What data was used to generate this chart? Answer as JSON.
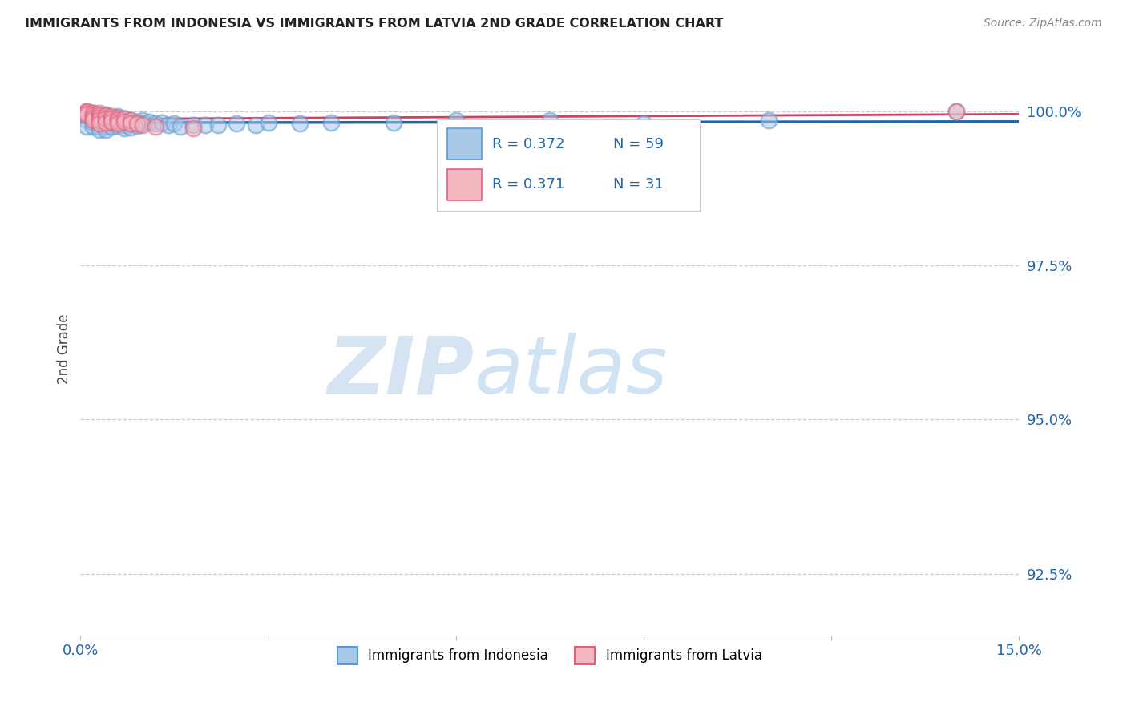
{
  "title": "IMMIGRANTS FROM INDONESIA VS IMMIGRANTS FROM LATVIA 2ND GRADE CORRELATION CHART",
  "source": "Source: ZipAtlas.com",
  "ylabel": "2nd Grade",
  "xmin": 0.0,
  "xmax": 0.15,
  "ymin": 0.915,
  "ymax": 1.008,
  "xticks": [
    0.0,
    0.03,
    0.06,
    0.09,
    0.12,
    0.15
  ],
  "xticklabels": [
    "0.0%",
    "",
    "",
    "",
    "",
    "15.0%"
  ],
  "yticks": [
    0.925,
    0.95,
    0.975,
    1.0
  ],
  "yticklabels": [
    "92.5%",
    "95.0%",
    "97.5%",
    "100.0%"
  ],
  "legend_label1": "Immigrants from Indonesia",
  "legend_label2": "Immigrants from Latvia",
  "color_indonesia": "#a8c8e8",
  "color_indonesia_edge": "#5b9bd5",
  "color_latvia": "#f4b8c1",
  "color_latvia_edge": "#e06080",
  "color_indonesia_line": "#2166ac",
  "color_latvia_line": "#d04060",
  "watermark_zip": "ZIP",
  "watermark_atlas": "atlas",
  "indonesia_x": [
    0.001,
    0.001,
    0.001,
    0.002,
    0.002,
    0.002,
    0.002,
    0.003,
    0.003,
    0.003,
    0.003,
    0.003,
    0.003,
    0.004,
    0.004,
    0.004,
    0.004,
    0.004,
    0.004,
    0.005,
    0.005,
    0.005,
    0.005,
    0.006,
    0.006,
    0.006,
    0.006,
    0.007,
    0.007,
    0.007,
    0.007,
    0.008,
    0.008,
    0.008,
    0.009,
    0.009,
    0.01,
    0.01,
    0.011,
    0.012,
    0.013,
    0.014,
    0.015,
    0.016,
    0.018,
    0.02,
    0.022,
    0.025,
    0.028,
    0.03,
    0.035,
    0.04,
    0.05,
    0.06,
    0.065,
    0.075,
    0.09,
    0.11,
    0.14
  ],
  "indonesia_y": [
    0.9995,
    0.9985,
    0.9975,
    0.9998,
    0.999,
    0.9982,
    0.9975,
    0.9995,
    0.999,
    0.9985,
    0.998,
    0.9975,
    0.997,
    0.9995,
    0.999,
    0.9985,
    0.998,
    0.9975,
    0.997,
    0.999,
    0.9985,
    0.998,
    0.9975,
    0.9992,
    0.9988,
    0.9983,
    0.9977,
    0.9988,
    0.9983,
    0.9978,
    0.9972,
    0.9985,
    0.998,
    0.9974,
    0.9983,
    0.9977,
    0.9985,
    0.998,
    0.9983,
    0.998,
    0.9982,
    0.9978,
    0.998,
    0.9975,
    0.9978,
    0.9978,
    0.9978,
    0.998,
    0.9978,
    0.9982,
    0.998,
    0.9982,
    0.9982,
    0.9985,
    0.995,
    0.9985,
    0.998,
    0.9985,
    1.0
  ],
  "latvia_x": [
    0.001,
    0.001,
    0.001,
    0.001,
    0.002,
    0.002,
    0.002,
    0.002,
    0.003,
    0.003,
    0.003,
    0.003,
    0.003,
    0.004,
    0.004,
    0.004,
    0.005,
    0.005,
    0.005,
    0.006,
    0.006,
    0.006,
    0.007,
    0.007,
    0.008,
    0.008,
    0.009,
    0.01,
    0.012,
    0.018,
    0.14
  ],
  "latvia_y": [
    1.0,
    1.0,
    0.9998,
    0.9995,
    0.9998,
    0.9993,
    0.999,
    0.9985,
    0.9998,
    0.9993,
    0.999,
    0.9985,
    0.998,
    0.9993,
    0.9988,
    0.9982,
    0.9992,
    0.9988,
    0.9983,
    0.999,
    0.9985,
    0.998,
    0.9988,
    0.9983,
    0.9985,
    0.998,
    0.998,
    0.9978,
    0.9975,
    0.9972,
    1.0
  ]
}
